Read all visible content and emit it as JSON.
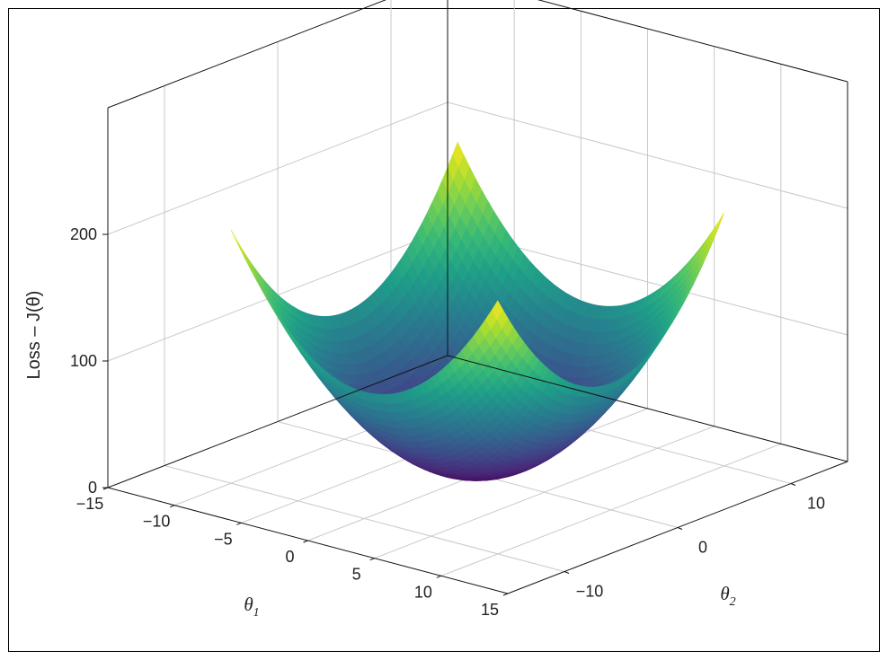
{
  "chart_data": {
    "type": "surface3d",
    "title": "",
    "function": "J(theta) = theta1^2 + theta2^2",
    "colormap": "viridis",
    "xlabel": "θ",
    "xlabel_sub": "1",
    "ylabel": "θ",
    "ylabel_sub": "2",
    "zlabel": "Loss – J(θ)",
    "xlim": [
      -15,
      15
    ],
    "ylim": [
      -15,
      15
    ],
    "zlim": [
      0,
      225
    ],
    "x_surface_range": [
      -10,
      10
    ],
    "y_surface_range": [
      -10,
      10
    ],
    "x_ticks": [
      "−15",
      "−10",
      "−5",
      "0",
      "5",
      "10",
      "15"
    ],
    "y_ticks": [
      "−10",
      "0",
      "10"
    ],
    "z_ticks": [
      "0",
      "100",
      "200"
    ],
    "x_tick_values": [
      -15,
      -10,
      -5,
      0,
      5,
      10,
      15
    ],
    "y_tick_values": [
      -10,
      0,
      10
    ],
    "z_tick_values": [
      0,
      100,
      200
    ],
    "grid": true
  }
}
